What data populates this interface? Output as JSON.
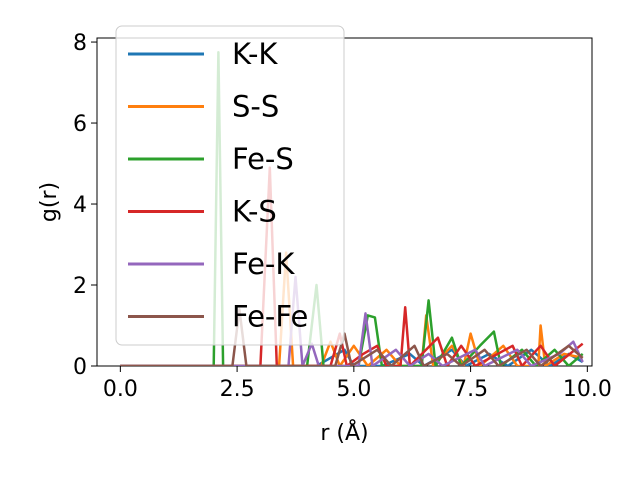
{
  "chart_data": {
    "type": "line",
    "title": "",
    "xlabel": "r (Å)",
    "ylabel": "g(r)",
    "xlim": [
      -0.5,
      10.1
    ],
    "ylim": [
      0,
      8.1
    ],
    "x_ticks": [
      0.0,
      2.5,
      5.0,
      7.5,
      10.0
    ],
    "x_tick_labels": [
      "0.0",
      "2.5",
      "5.0",
      "7.5",
      "10.0"
    ],
    "y_ticks": [
      0,
      2,
      4,
      6,
      8
    ],
    "y_tick_labels": [
      "0",
      "2",
      "4",
      "6",
      "8"
    ],
    "grid": false,
    "legend_position": "upper-left",
    "series": [
      {
        "name": "K-K",
        "color": "#1f77b4",
        "points": [
          [
            0.0,
            0.0
          ],
          [
            3.0,
            0.0
          ],
          [
            3.3,
            0.0
          ],
          [
            4.2,
            0.0
          ],
          [
            4.8,
            0.4
          ],
          [
            5.0,
            0.0
          ],
          [
            5.6,
            0.0
          ],
          [
            6.2,
            0.3
          ],
          [
            6.5,
            0.0
          ],
          [
            7.1,
            0.4
          ],
          [
            7.4,
            0.0
          ],
          [
            7.9,
            0.3
          ],
          [
            8.3,
            0.0
          ],
          [
            8.8,
            0.4
          ],
          [
            9.2,
            0.0
          ],
          [
            9.6,
            0.3
          ],
          [
            9.9,
            0.1
          ]
        ]
      },
      {
        "name": "S-S",
        "color": "#ff7f0e",
        "points": [
          [
            0.0,
            0.0
          ],
          [
            3.4,
            0.0
          ],
          [
            3.55,
            2.8
          ],
          [
            3.7,
            0.0
          ],
          [
            4.3,
            0.0
          ],
          [
            4.5,
            0.6
          ],
          [
            4.7,
            0.0
          ],
          [
            5.0,
            0.5
          ],
          [
            5.3,
            0.0
          ],
          [
            5.7,
            0.4
          ],
          [
            6.0,
            0.0
          ],
          [
            6.45,
            0.0
          ],
          [
            6.55,
            1.25
          ],
          [
            6.7,
            0.0
          ],
          [
            7.1,
            0.5
          ],
          [
            7.35,
            0.0
          ],
          [
            7.5,
            0.8
          ],
          [
            7.7,
            0.0
          ],
          [
            8.2,
            0.5
          ],
          [
            8.5,
            0.0
          ],
          [
            8.95,
            0.0
          ],
          [
            9.0,
            1.0
          ],
          [
            9.1,
            0.0
          ],
          [
            9.5,
            0.3
          ],
          [
            9.9,
            0.2
          ]
        ]
      },
      {
        "name": "Fe-S",
        "color": "#2ca02c",
        "points": [
          [
            0.0,
            0.0
          ],
          [
            2.0,
            0.0
          ],
          [
            2.1,
            7.75
          ],
          [
            2.2,
            0.0
          ],
          [
            4.0,
            0.0
          ],
          [
            4.2,
            2.0
          ],
          [
            4.35,
            0.0
          ],
          [
            5.1,
            0.0
          ],
          [
            5.3,
            1.25
          ],
          [
            5.45,
            1.2
          ],
          [
            5.6,
            0.0
          ],
          [
            6.45,
            0.0
          ],
          [
            6.6,
            1.62
          ],
          [
            6.75,
            0.0
          ],
          [
            7.1,
            0.7
          ],
          [
            7.3,
            0.0
          ],
          [
            7.7,
            0.5
          ],
          [
            8.0,
            0.85
          ],
          [
            8.15,
            0.0
          ],
          [
            8.6,
            0.4
          ],
          [
            8.9,
            0.0
          ],
          [
            9.3,
            0.4
          ],
          [
            9.6,
            0.0
          ],
          [
            9.9,
            0.3
          ]
        ]
      },
      {
        "name": "K-S",
        "color": "#d62728",
        "points": [
          [
            0.0,
            0.0
          ],
          [
            3.0,
            0.0
          ],
          [
            3.2,
            4.9
          ],
          [
            3.35,
            0.0
          ],
          [
            4.5,
            0.0
          ],
          [
            4.7,
            0.8
          ],
          [
            4.85,
            0.0
          ],
          [
            5.2,
            0.3
          ],
          [
            5.5,
            0.5
          ],
          [
            5.7,
            0.0
          ],
          [
            6.0,
            0.0
          ],
          [
            6.1,
            1.45
          ],
          [
            6.2,
            0.0
          ],
          [
            6.8,
            0.7
          ],
          [
            7.0,
            0.0
          ],
          [
            7.3,
            0.5
          ],
          [
            7.6,
            0.0
          ],
          [
            8.4,
            0.5
          ],
          [
            8.6,
            0.0
          ],
          [
            9.0,
            0.5
          ],
          [
            9.3,
            0.0
          ],
          [
            9.9,
            0.55
          ]
        ]
      },
      {
        "name": "Fe-K",
        "color": "#9467bd",
        "points": [
          [
            0.0,
            0.0
          ],
          [
            3.6,
            0.0
          ],
          [
            3.75,
            2.2
          ],
          [
            3.9,
            0.0
          ],
          [
            4.1,
            0.55
          ],
          [
            4.25,
            0.0
          ],
          [
            5.1,
            0.0
          ],
          [
            5.25,
            1.3
          ],
          [
            5.4,
            0.0
          ],
          [
            5.9,
            0.4
          ],
          [
            6.2,
            0.0
          ],
          [
            6.6,
            0.3
          ],
          [
            6.9,
            0.0
          ],
          [
            7.6,
            0.4
          ],
          [
            7.8,
            0.0
          ],
          [
            8.5,
            0.4
          ],
          [
            8.8,
            0.0
          ],
          [
            9.4,
            0.3
          ],
          [
            9.7,
            0.6
          ],
          [
            9.9,
            0.1
          ]
        ]
      },
      {
        "name": "Fe-Fe",
        "color": "#8c564b",
        "points": [
          [
            0.0,
            0.0
          ],
          [
            2.4,
            0.0
          ],
          [
            2.55,
            1.4
          ],
          [
            2.7,
            0.0
          ],
          [
            4.6,
            0.0
          ],
          [
            4.8,
            0.8
          ],
          [
            4.95,
            0.0
          ],
          [
            5.5,
            0.4
          ],
          [
            5.8,
            0.0
          ],
          [
            6.3,
            0.5
          ],
          [
            6.5,
            0.0
          ],
          [
            7.0,
            0.3
          ],
          [
            7.3,
            0.0
          ],
          [
            7.8,
            0.4
          ],
          [
            8.1,
            0.0
          ],
          [
            8.7,
            0.4
          ],
          [
            9.0,
            0.0
          ],
          [
            9.6,
            0.5
          ],
          [
            9.9,
            0.2
          ]
        ]
      }
    ]
  }
}
